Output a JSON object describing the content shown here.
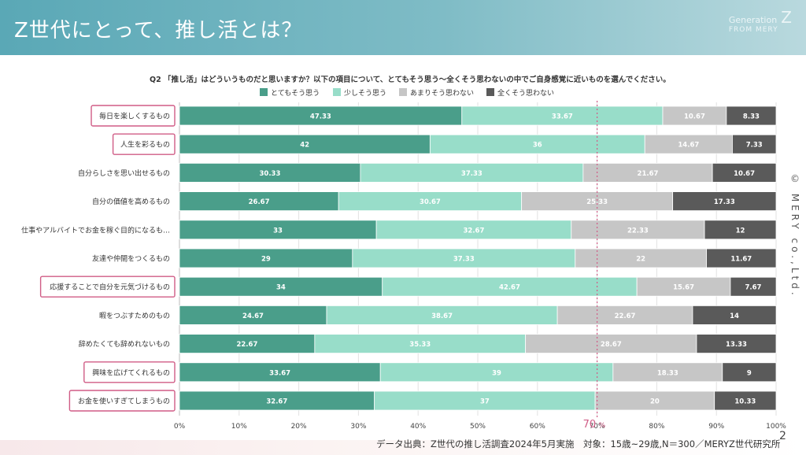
{
  "header": {
    "title": "Z世代にとって、推し活とは？",
    "brand_generation": "Generation",
    "brand_z": "Z",
    "brand_from": "FROM MERY"
  },
  "question": "Q2 「推し活」はどういうものだと思いますか？以下の項目について、とてもそう思う〜全くそう思わないの中でご自身感覚に近いものを選んでください。",
  "copyright": "© MERY co.,Ltd.",
  "source": "データ出典：Z世代の推し活調査2024年5月実施　対象：15歳~29歳,N＝300／MERYZ世代研究所",
  "page_number": "2",
  "colors": {
    "very": "#4a9e8a",
    "somewhat": "#98ddc9",
    "not_much": "#c6c6c6",
    "not_at_all": "#5a5a5a",
    "highlight": "#d05c86",
    "reference": "#d05c86"
  },
  "chart_data": {
    "type": "bar",
    "orientation": "horizontal",
    "stacked": true,
    "categories": [
      "毎日を楽しくするもの",
      "人生を彩るもの",
      "自分らしさを思い出せるもの",
      "自分の価値を高めるもの",
      "仕事やアルバイトでお金を稼ぐ目的になるも…",
      "友達や仲間をつくるもの",
      "応援することで自分を元気づけるもの",
      "暇をつぶすためのもの",
      "辞めたくても辞めれないもの",
      "興味を広げてくれるもの",
      "お金を使いすぎてしまうもの"
    ],
    "highlighted": [
      true,
      true,
      false,
      false,
      false,
      false,
      true,
      false,
      false,
      true,
      true
    ],
    "series": [
      {
        "name": "とてもそう思う",
        "color": "#4a9e8a",
        "labels": [
          "47.33",
          "42",
          "30.33",
          "26.67",
          "33",
          "29",
          "34",
          "24.67",
          "22.67",
          "33.67",
          "32.67"
        ]
      },
      {
        "name": "少しそう思う",
        "color": "#98ddc9",
        "labels": [
          "33.67",
          "36",
          "37.33",
          "30.67",
          "32.67",
          "37.33",
          "42.67",
          "38.67",
          "35.33",
          "39",
          "37"
        ]
      },
      {
        "name": "あまりそう思わない",
        "color": "#c6c6c6",
        "labels": [
          "10.67",
          "14.67",
          "21.67",
          "25.33",
          "22.33",
          "22",
          "15.67",
          "22.67",
          "28.67",
          "18.33",
          "20"
        ]
      },
      {
        "name": "全くそう思わない",
        "color": "#5a5a5a",
        "labels": [
          "8.33",
          "7.33",
          "10.67",
          "17.33",
          "12",
          "11.67",
          "7.67",
          "14",
          "13.33",
          "9",
          "10.33"
        ]
      }
    ],
    "xlim": [
      0,
      100
    ],
    "xticks": [
      "0%",
      "10%",
      "20%",
      "30%",
      "40%",
      "50%",
      "60%",
      "70%",
      "80%",
      "90%",
      "100%"
    ],
    "reference_line": {
      "value": 70,
      "label": "70",
      "unit": "%"
    },
    "legend_position": "top-center"
  }
}
